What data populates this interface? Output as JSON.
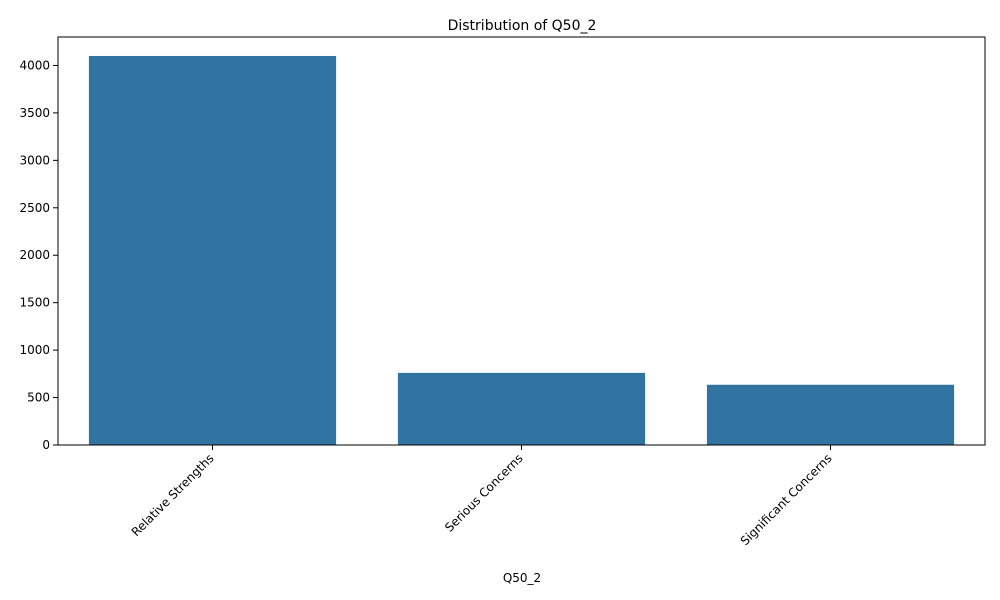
{
  "chart_data": {
    "type": "bar",
    "title": "Distribution of Q50_2",
    "xlabel": "Q50_2",
    "ylabel": "",
    "categories": [
      "Relative Strengths",
      "Serious Concerns",
      "Significant Concerns"
    ],
    "values": [
      4100,
      760,
      635
    ],
    "ylim": [
      0,
      4300
    ],
    "yticks": [
      0,
      500,
      1000,
      1500,
      2000,
      2500,
      3000,
      3500,
      4000
    ],
    "grid": false,
    "legend": "none",
    "bar_color": "#3274a1"
  }
}
